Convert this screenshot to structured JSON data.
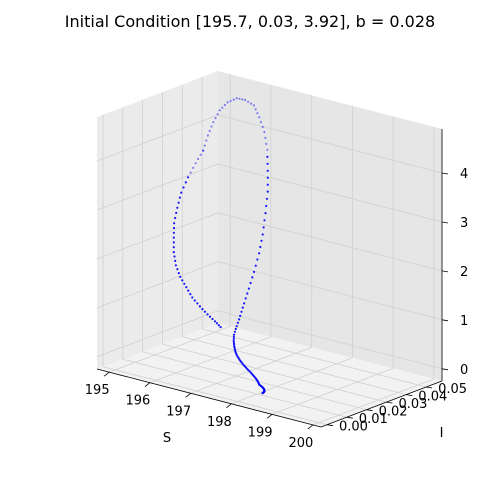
{
  "chart_data": {
    "type": "scatter",
    "projection": "3d",
    "title": "Initial Condition [195.7, 0.03, 3.92], b = 0.028",
    "xlabel": "S",
    "ylabel": "I",
    "zlabel": "",
    "xlim": [
      194.7,
      200.2
    ],
    "ylim": [
      -0.003,
      0.058
    ],
    "zlim": [
      -0.25,
      4.9
    ],
    "x_ticks": [
      195,
      196,
      197,
      198,
      199,
      200
    ],
    "x_tick_labels": [
      "195",
      "196",
      "197",
      "198",
      "199",
      "200"
    ],
    "y_ticks": [
      0.0,
      0.01,
      0.02,
      0.03,
      0.04,
      0.05
    ],
    "y_tick_labels": [
      "0.00",
      "0.01",
      "0.02",
      "0.03",
      "0.04",
      "0.05"
    ],
    "z_ticks": [
      0,
      1,
      2,
      3,
      4
    ],
    "z_tick_labels": [
      "0",
      "1",
      "2",
      "3",
      "4"
    ],
    "grid": true,
    "marker_color": "#0000ff",
    "pane_colors": {
      "floor": "#f2f2f2",
      "back": "#e6e6e6",
      "side": "#ebebeb"
    },
    "series": [
      {
        "points": [
          [
            195.7,
            0.03,
            3.92
          ],
          [
            195.62,
            0.034,
            4.15
          ],
          [
            195.56,
            0.038,
            4.35
          ],
          [
            195.52,
            0.042,
            4.52
          ],
          [
            195.52,
            0.046,
            4.62
          ],
          [
            195.55,
            0.05,
            4.65
          ],
          [
            195.61,
            0.053,
            4.58
          ],
          [
            195.68,
            0.056,
            4.44
          ],
          [
            195.76,
            0.057,
            4.2
          ],
          [
            195.84,
            0.058,
            3.9
          ],
          [
            195.91,
            0.058,
            3.55
          ],
          [
            195.97,
            0.057,
            3.15
          ],
          [
            196.02,
            0.056,
            2.75
          ],
          [
            196.06,
            0.054,
            2.35
          ],
          [
            196.09,
            0.052,
            1.95
          ],
          [
            196.1,
            0.05,
            1.6
          ],
          [
            196.12,
            0.047,
            1.27
          ],
          [
            196.14,
            0.044,
            0.98
          ],
          [
            196.17,
            0.041,
            0.73
          ],
          [
            196.22,
            0.038,
            0.53
          ],
          [
            196.28,
            0.035,
            0.38
          ],
          [
            196.36,
            0.032,
            0.27
          ],
          [
            196.45,
            0.03,
            0.19
          ],
          [
            196.56,
            0.028,
            0.14
          ],
          [
            196.68,
            0.026,
            0.1
          ],
          [
            196.82,
            0.024,
            0.07
          ],
          [
            196.98,
            0.022,
            0.05
          ],
          [
            197.15,
            0.02,
            0.035
          ],
          [
            197.33,
            0.018,
            0.025
          ],
          [
            197.52,
            0.016,
            0.018
          ],
          [
            197.7,
            0.014,
            0.012
          ],
          [
            197.87,
            0.012,
            0.008
          ],
          [
            198.02,
            0.01,
            0.006
          ],
          [
            198.15,
            0.008,
            0.004
          ],
          [
            198.26,
            0.007,
            0.003
          ],
          [
            198.35,
            0.006,
            0.002
          ],
          [
            198.42,
            0.005,
            0.002
          ],
          [
            198.47,
            0.004,
            0.001
          ],
          [
            198.5,
            0.003,
            0.001
          ],
          [
            198.52,
            0.002,
            0.001
          ]
        ]
      },
      {
        "points": [
          [
            195.7,
            0.03,
            3.92
          ],
          [
            195.66,
            0.027,
            3.7
          ],
          [
            195.62,
            0.024,
            3.45
          ],
          [
            195.6,
            0.021,
            3.18
          ],
          [
            195.6,
            0.019,
            2.9
          ],
          [
            195.62,
            0.017,
            2.62
          ],
          [
            195.66,
            0.016,
            2.35
          ],
          [
            195.71,
            0.015,
            2.08
          ],
          [
            195.76,
            0.015,
            1.82
          ],
          [
            195.82,
            0.016,
            1.58
          ],
          [
            195.87,
            0.018,
            1.35
          ],
          [
            195.92,
            0.02,
            1.12
          ],
          [
            195.96,
            0.023,
            0.9
          ],
          [
            196.0,
            0.026,
            0.7
          ],
          [
            196.04,
            0.029,
            0.52
          ],
          [
            196.08,
            0.031,
            0.38
          ]
        ]
      }
    ]
  }
}
